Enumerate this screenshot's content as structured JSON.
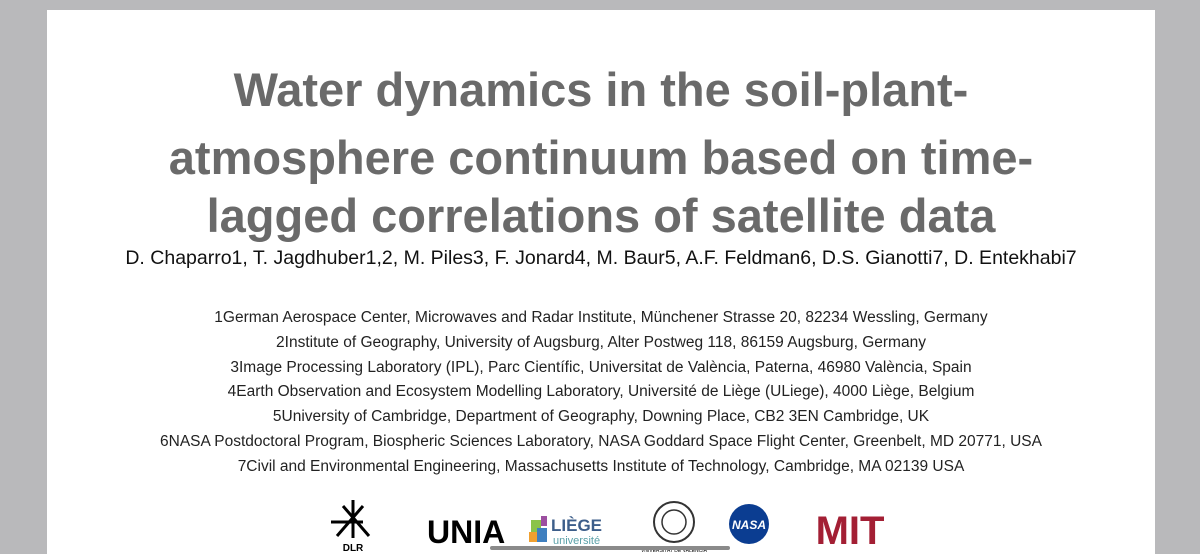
{
  "slide": {
    "title": [
      "Water dynamics in the soil-plant-",
      "atmosphere continuum based on time-",
      "lagged correlations of satellite data"
    ],
    "authors": "D. Chaparro1, T. Jagdhuber1,2, M. Piles3, F. Jonard4, M. Baur5, A.F. Feldman6, D.S. Gianotti7, D. Entekhabi7",
    "affiliations": [
      "1German Aerospace Center, Microwaves and Radar Institute, Münchener Strasse 20, 82234 Wessling, Germany",
      "2Institute of Geography, University of Augsburg, Alter Postweg 118, 86159 Augsburg, Germany",
      "3Image Processing Laboratory (IPL), Parc Científic, Universitat de València, Paterna, 46980 València, Spain",
      "4Earth Observation and Ecosystem Modelling Laboratory, Université de Liège (ULiege), 4000 Liège, Belgium",
      "5University of Cambridge, Department of Geography, Downing Place, CB2 3EN Cambridge, UK",
      "6NASA Postdoctoral Program, Biospheric Sciences Laboratory, NASA Goddard Space Flight Center, Greenbelt, MD 20771, USA",
      "7Civil and Environmental Engineering, Massachusetts Institute of Technology, Cambridge, MA 02139 USA"
    ],
    "logos": {
      "dlr": "DLR",
      "unia": "UNIA",
      "liege": "LIÈGE",
      "liege_sub": "université",
      "valencia": "VNIVERSITAT DE VALÈNCIA",
      "nasa": "NASA",
      "mit": "MIT"
    }
  }
}
